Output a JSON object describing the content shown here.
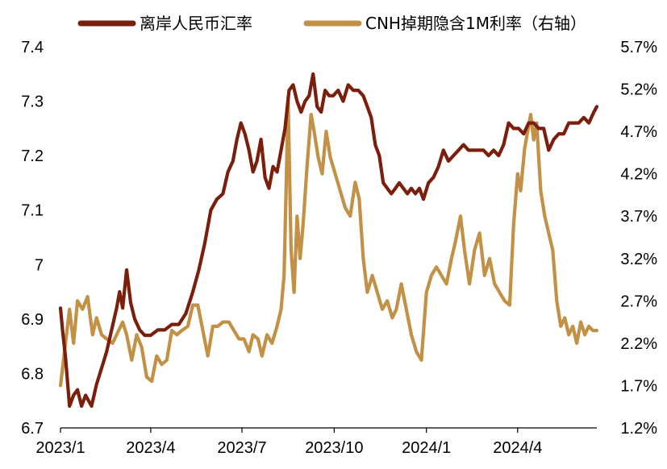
{
  "chart_data": {
    "type": "line",
    "legend": {
      "position": "top",
      "entries": [
        {
          "label": "离岸人民币汇率",
          "series": 0
        },
        {
          "label": "CNH掉期隐含1M利率（右轴）",
          "series": 1
        }
      ]
    },
    "x_axis": {
      "tick_labels": [
        "2023/1",
        "2023/4",
        "2023/7",
        "2023/10",
        "2024/1",
        "2024/4"
      ],
      "range": [
        "2023/1",
        "2024/6"
      ]
    },
    "y_left": {
      "range": [
        6.7,
        7.4
      ],
      "tick_labels": [
        "6.7",
        "6.8",
        "6.9",
        "7",
        "7.1",
        "7.2",
        "7.3",
        "7.4"
      ],
      "tick_values": [
        6.7,
        6.8,
        6.9,
        7.0,
        7.1,
        7.2,
        7.3,
        7.4
      ]
    },
    "y_right": {
      "range": [
        1.2,
        5.7
      ],
      "unit": "%",
      "tick_labels": [
        "1.2%",
        "1.7%",
        "2.2%",
        "2.7%",
        "3.2%",
        "3.7%",
        "4.2%",
        "4.7%",
        "5.2%",
        "5.7%"
      ],
      "tick_values": [
        1.2,
        1.7,
        2.2,
        2.7,
        3.2,
        3.7,
        4.2,
        4.7,
        5.2,
        5.7
      ]
    },
    "grid": false,
    "series": [
      {
        "name": "离岸人民币汇率",
        "axis": "left",
        "color": "#7B1E0B",
        "points": [
          [
            "2023-01-01",
            6.92
          ],
          [
            "2023-01-03",
            6.88
          ],
          [
            "2023-01-06",
            6.83
          ],
          [
            "2023-01-10",
            6.74
          ],
          [
            "2023-01-14",
            6.76
          ],
          [
            "2023-01-18",
            6.77
          ],
          [
            "2023-01-22",
            6.74
          ],
          [
            "2023-01-26",
            6.76
          ],
          [
            "2023-02-01",
            6.74
          ],
          [
            "2023-02-06",
            6.78
          ],
          [
            "2023-02-11",
            6.81
          ],
          [
            "2023-02-16",
            6.84
          ],
          [
            "2023-02-21",
            6.88
          ],
          [
            "2023-02-26",
            6.92
          ],
          [
            "2023-03-01",
            6.95
          ],
          [
            "2023-03-04",
            6.92
          ],
          [
            "2023-03-08",
            6.99
          ],
          [
            "2023-03-12",
            6.93
          ],
          [
            "2023-03-16",
            6.9
          ],
          [
            "2023-03-21",
            6.88
          ],
          [
            "2023-03-26",
            6.87
          ],
          [
            "2023-04-01",
            6.87
          ],
          [
            "2023-04-08",
            6.88
          ],
          [
            "2023-04-15",
            6.88
          ],
          [
            "2023-04-22",
            6.89
          ],
          [
            "2023-04-29",
            6.89
          ],
          [
            "2023-05-06",
            6.91
          ],
          [
            "2023-05-13",
            6.95
          ],
          [
            "2023-05-19",
            6.99
          ],
          [
            "2023-05-25",
            7.04
          ],
          [
            "2023-05-31",
            7.1
          ],
          [
            "2023-06-06",
            7.12
          ],
          [
            "2023-06-12",
            7.13
          ],
          [
            "2023-06-17",
            7.17
          ],
          [
            "2023-06-22",
            7.19
          ],
          [
            "2023-06-26",
            7.23
          ],
          [
            "2023-06-30",
            7.26
          ],
          [
            "2023-07-04",
            7.24
          ],
          [
            "2023-07-08",
            7.21
          ],
          [
            "2023-07-12",
            7.17
          ],
          [
            "2023-07-16",
            7.19
          ],
          [
            "2023-07-20",
            7.23
          ],
          [
            "2023-07-24",
            7.16
          ],
          [
            "2023-07-28",
            7.14
          ],
          [
            "2023-08-01",
            7.18
          ],
          [
            "2023-08-05",
            7.17
          ],
          [
            "2023-08-09",
            7.21
          ],
          [
            "2023-08-13",
            7.25
          ],
          [
            "2023-08-17",
            7.32
          ],
          [
            "2023-08-21",
            7.33
          ],
          [
            "2023-08-25",
            7.3
          ],
          [
            "2023-08-29",
            7.28
          ],
          [
            "2023-09-02",
            7.3
          ],
          [
            "2023-09-06",
            7.31
          ],
          [
            "2023-09-10",
            7.35
          ],
          [
            "2023-09-14",
            7.29
          ],
          [
            "2023-09-18",
            7.28
          ],
          [
            "2023-09-22",
            7.32
          ],
          [
            "2023-09-26",
            7.31
          ],
          [
            "2023-09-30",
            7.31
          ],
          [
            "2023-10-05",
            7.32
          ],
          [
            "2023-10-10",
            7.3
          ],
          [
            "2023-10-15",
            7.33
          ],
          [
            "2023-10-20",
            7.32
          ],
          [
            "2023-10-25",
            7.32
          ],
          [
            "2023-10-30",
            7.31
          ],
          [
            "2023-11-03",
            7.29
          ],
          [
            "2023-11-07",
            7.27
          ],
          [
            "2023-11-11",
            7.22
          ],
          [
            "2023-11-15",
            7.2
          ],
          [
            "2023-11-19",
            7.15
          ],
          [
            "2023-11-23",
            7.14
          ],
          [
            "2023-11-27",
            7.13
          ],
          [
            "2023-12-01",
            7.14
          ],
          [
            "2023-12-05",
            7.15
          ],
          [
            "2023-12-09",
            7.14
          ],
          [
            "2023-12-13",
            7.13
          ],
          [
            "2023-12-17",
            7.14
          ],
          [
            "2023-12-21",
            7.13
          ],
          [
            "2023-12-25",
            7.14
          ],
          [
            "2023-12-29",
            7.12
          ],
          [
            "2024-01-03",
            7.15
          ],
          [
            "2024-01-08",
            7.16
          ],
          [
            "2024-01-13",
            7.18
          ],
          [
            "2024-01-18",
            7.21
          ],
          [
            "2024-01-23",
            7.19
          ],
          [
            "2024-01-28",
            7.2
          ],
          [
            "2024-02-02",
            7.21
          ],
          [
            "2024-02-07",
            7.22
          ],
          [
            "2024-02-12",
            7.21
          ],
          [
            "2024-02-17",
            7.21
          ],
          [
            "2024-02-22",
            7.21
          ],
          [
            "2024-02-27",
            7.21
          ],
          [
            "2024-03-03",
            7.2
          ],
          [
            "2024-03-08",
            7.21
          ],
          [
            "2024-03-13",
            7.2
          ],
          [
            "2024-03-18",
            7.22
          ],
          [
            "2024-03-23",
            7.26
          ],
          [
            "2024-03-28",
            7.25
          ],
          [
            "2024-04-02",
            7.25
          ],
          [
            "2024-04-07",
            7.24
          ],
          [
            "2024-04-12",
            7.26
          ],
          [
            "2024-04-17",
            7.26
          ],
          [
            "2024-04-22",
            7.25
          ],
          [
            "2024-04-27",
            7.25
          ],
          [
            "2024-05-02",
            7.21
          ],
          [
            "2024-05-07",
            7.23
          ],
          [
            "2024-05-12",
            7.24
          ],
          [
            "2024-05-17",
            7.24
          ],
          [
            "2024-05-22",
            7.26
          ],
          [
            "2024-05-27",
            7.26
          ],
          [
            "2024-06-01",
            7.26
          ],
          [
            "2024-06-06",
            7.27
          ],
          [
            "2024-06-11",
            7.26
          ],
          [
            "2024-06-16",
            7.28
          ],
          [
            "2024-06-19",
            7.29
          ]
        ]
      },
      {
        "name": "CNH掉期隐含1M利率（右轴）",
        "axis": "right",
        "color": "#C29146",
        "points": [
          [
            "2023-01-01",
            1.7
          ],
          [
            "2023-01-05",
            2.1
          ],
          [
            "2023-01-10",
            2.6
          ],
          [
            "2023-01-14",
            2.2
          ],
          [
            "2023-01-18",
            2.7
          ],
          [
            "2023-01-23",
            2.6
          ],
          [
            "2023-01-28",
            2.75
          ],
          [
            "2023-02-02",
            2.3
          ],
          [
            "2023-02-06",
            2.5
          ],
          [
            "2023-02-11",
            2.3
          ],
          [
            "2023-02-16",
            2.25
          ],
          [
            "2023-02-22",
            2.2
          ],
          [
            "2023-02-28",
            2.35
          ],
          [
            "2023-03-04",
            2.45
          ],
          [
            "2023-03-08",
            2.3
          ],
          [
            "2023-03-13",
            2.0
          ],
          [
            "2023-03-18",
            2.3
          ],
          [
            "2023-03-23",
            2.15
          ],
          [
            "2023-03-28",
            1.8
          ],
          [
            "2023-04-02",
            1.75
          ],
          [
            "2023-04-07",
            2.05
          ],
          [
            "2023-04-12",
            1.95
          ],
          [
            "2023-04-17",
            2.0
          ],
          [
            "2023-04-22",
            2.35
          ],
          [
            "2023-04-27",
            2.3
          ],
          [
            "2023-05-02",
            2.35
          ],
          [
            "2023-05-08",
            2.4
          ],
          [
            "2023-05-13",
            2.65
          ],
          [
            "2023-05-18",
            2.65
          ],
          [
            "2023-05-23",
            2.35
          ],
          [
            "2023-05-28",
            2.05
          ],
          [
            "2023-06-02",
            2.4
          ],
          [
            "2023-06-07",
            2.4
          ],
          [
            "2023-06-12",
            2.45
          ],
          [
            "2023-06-18",
            2.45
          ],
          [
            "2023-06-23",
            2.35
          ],
          [
            "2023-06-28",
            2.25
          ],
          [
            "2023-07-03",
            2.25
          ],
          [
            "2023-07-08",
            2.1
          ],
          [
            "2023-07-12",
            2.3
          ],
          [
            "2023-07-17",
            2.25
          ],
          [
            "2023-07-21",
            2.05
          ],
          [
            "2023-07-26",
            2.3
          ],
          [
            "2023-07-31",
            2.2
          ],
          [
            "2023-08-05",
            2.4
          ],
          [
            "2023-08-09",
            2.6
          ],
          [
            "2023-08-12",
            3.0
          ],
          [
            "2023-08-14",
            4.0
          ],
          [
            "2023-08-16",
            5.1
          ],
          [
            "2023-08-19",
            3.3
          ],
          [
            "2023-08-22",
            2.8
          ],
          [
            "2023-08-25",
            3.7
          ],
          [
            "2023-08-28",
            3.2
          ],
          [
            "2023-08-31",
            3.6
          ],
          [
            "2023-09-04",
            4.3
          ],
          [
            "2023-09-08",
            4.9
          ],
          [
            "2023-09-11",
            4.7
          ],
          [
            "2023-09-15",
            4.4
          ],
          [
            "2023-09-19",
            4.2
          ],
          [
            "2023-09-23",
            4.7
          ],
          [
            "2023-09-27",
            4.4
          ],
          [
            "2023-10-02",
            4.2
          ],
          [
            "2023-10-07",
            4.0
          ],
          [
            "2023-10-12",
            3.8
          ],
          [
            "2023-10-17",
            3.7
          ],
          [
            "2023-10-22",
            4.1
          ],
          [
            "2023-10-26",
            3.9
          ],
          [
            "2023-10-30",
            3.2
          ],
          [
            "2023-11-03",
            2.8
          ],
          [
            "2023-11-08",
            3.0
          ],
          [
            "2023-11-13",
            2.8
          ],
          [
            "2023-11-18",
            2.6
          ],
          [
            "2023-11-23",
            2.7
          ],
          [
            "2023-11-28",
            2.5
          ],
          [
            "2023-12-02",
            2.6
          ],
          [
            "2023-12-07",
            2.9
          ],
          [
            "2023-12-12",
            2.6
          ],
          [
            "2023-12-17",
            2.3
          ],
          [
            "2023-12-22",
            2.1
          ],
          [
            "2023-12-27",
            2.0
          ],
          [
            "2024-01-01",
            2.8
          ],
          [
            "2024-01-06",
            3.0
          ],
          [
            "2024-01-11",
            3.1
          ],
          [
            "2024-01-16",
            3.0
          ],
          [
            "2024-01-21",
            2.9
          ],
          [
            "2024-01-26",
            3.2
          ],
          [
            "2024-01-30",
            3.4
          ],
          [
            "2024-02-04",
            3.7
          ],
          [
            "2024-02-08",
            3.3
          ],
          [
            "2024-02-13",
            2.9
          ],
          [
            "2024-02-18",
            3.3
          ],
          [
            "2024-02-23",
            3.5
          ],
          [
            "2024-02-28",
            3.0
          ],
          [
            "2024-03-04",
            3.2
          ],
          [
            "2024-03-09",
            2.9
          ],
          [
            "2024-03-14",
            2.8
          ],
          [
            "2024-03-19",
            2.7
          ],
          [
            "2024-03-24",
            2.65
          ],
          [
            "2024-03-28",
            3.6
          ],
          [
            "2024-04-01",
            4.2
          ],
          [
            "2024-04-04",
            4.0
          ],
          [
            "2024-04-08",
            4.5
          ],
          [
            "2024-04-11",
            4.7
          ],
          [
            "2024-04-14",
            4.9
          ],
          [
            "2024-04-17",
            4.6
          ],
          [
            "2024-04-20",
            4.8
          ],
          [
            "2024-04-24",
            4.0
          ],
          [
            "2024-04-28",
            3.7
          ],
          [
            "2024-05-02",
            3.5
          ],
          [
            "2024-05-06",
            3.3
          ],
          [
            "2024-05-10",
            2.7
          ],
          [
            "2024-05-14",
            2.4
          ],
          [
            "2024-05-18",
            2.5
          ],
          [
            "2024-05-22",
            2.3
          ],
          [
            "2024-05-26",
            2.4
          ],
          [
            "2024-05-30",
            2.2
          ],
          [
            "2024-06-03",
            2.45
          ],
          [
            "2024-06-07",
            2.3
          ],
          [
            "2024-06-11",
            2.4
          ],
          [
            "2024-06-15",
            2.35
          ],
          [
            "2024-06-19",
            2.35
          ]
        ]
      }
    ]
  }
}
